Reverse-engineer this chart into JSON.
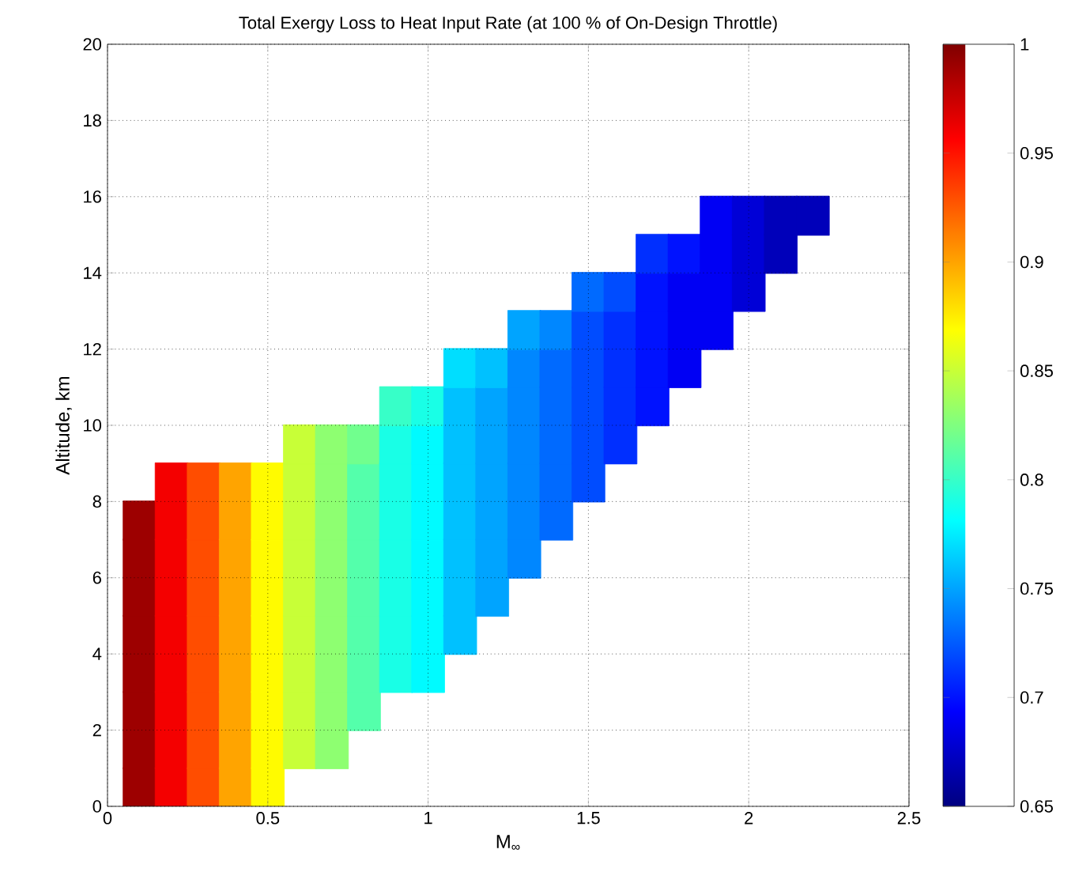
{
  "chart_data": {
    "type": "scatter",
    "title": "Total Exergy Loss to Heat Input Rate (at 100 % of On-Design Throttle)",
    "xlabel": "M$_{∞}$",
    "ylabel": "Altitude, km",
    "x": [
      0.1,
      0.1,
      0.1,
      0.1,
      0.1,
      0.1,
      0.1,
      0.1,
      0.2,
      0.2,
      0.2,
      0.2,
      0.2,
      0.2,
      0.2,
      0.2,
      0.2,
      0.3,
      0.3,
      0.3,
      0.3,
      0.3,
      0.3,
      0.3,
      0.3,
      0.3,
      0.4,
      0.4,
      0.4,
      0.4,
      0.4,
      0.4,
      0.4,
      0.4,
      0.4,
      0.5,
      0.5,
      0.5,
      0.5,
      0.5,
      0.5,
      0.5,
      0.5,
      0.5,
      0.6,
      0.6,
      0.6,
      0.6,
      0.6,
      0.6,
      0.6,
      0.6,
      0.6,
      0.7,
      0.7,
      0.7,
      0.7,
      0.7,
      0.7,
      0.7,
      0.7,
      0.7,
      0.8,
      0.8,
      0.8,
      0.8,
      0.8,
      0.8,
      0.8,
      0.8,
      0.9,
      0.9,
      0.9,
      0.9,
      0.9,
      0.9,
      0.9,
      0.9,
      1.0,
      1.0,
      1.0,
      1.0,
      1.0,
      1.0,
      1.0,
      1.0,
      1.1,
      1.1,
      1.1,
      1.1,
      1.1,
      1.1,
      1.1,
      1.1,
      1.2,
      1.2,
      1.2,
      1.2,
      1.2,
      1.2,
      1.2,
      1.3,
      1.3,
      1.3,
      1.3,
      1.3,
      1.3,
      1.3,
      1.4,
      1.4,
      1.4,
      1.4,
      1.4,
      1.4,
      1.5,
      1.5,
      1.5,
      1.5,
      1.5,
      1.5,
      1.6,
      1.6,
      1.6,
      1.6,
      1.6,
      1.7,
      1.7,
      1.7,
      1.7,
      1.7,
      1.8,
      1.8,
      1.8,
      1.8,
      1.9,
      1.9,
      1.9,
      1.9,
      2.0,
      2.0,
      2.0,
      2.1,
      2.1,
      2.2
    ],
    "values": [
      0.5,
      1.5,
      2.5,
      3.5,
      4.5,
      5.5,
      6.5,
      7.5,
      0.5,
      1.5,
      2.5,
      3.5,
      4.5,
      5.5,
      6.5,
      7.5,
      8.5,
      0.5,
      1.5,
      2.5,
      3.5,
      4.5,
      5.5,
      6.5,
      7.5,
      8.5,
      0.5,
      1.5,
      2.5,
      3.5,
      4.5,
      5.5,
      6.5,
      7.5,
      8.5,
      0.5,
      1.5,
      2.5,
      3.5,
      4.5,
      5.5,
      6.5,
      7.5,
      8.5,
      1.5,
      2.5,
      3.5,
      4.5,
      5.5,
      6.5,
      7.5,
      8.5,
      9.5,
      1.5,
      2.5,
      3.5,
      4.5,
      5.5,
      6.5,
      7.5,
      8.5,
      9.5,
      2.5,
      3.5,
      4.5,
      5.5,
      6.5,
      7.5,
      8.5,
      9.5,
      3.5,
      4.5,
      5.5,
      6.5,
      7.5,
      8.5,
      9.5,
      10.5,
      3.5,
      4.5,
      5.5,
      6.5,
      7.5,
      8.5,
      9.5,
      10.5,
      4.5,
      5.5,
      6.5,
      7.5,
      8.5,
      9.5,
      10.5,
      11.5,
      5.5,
      6.5,
      7.5,
      8.5,
      9.5,
      10.5,
      11.5,
      6.5,
      7.5,
      8.5,
      9.5,
      10.5,
      11.5,
      12.5,
      7.5,
      8.5,
      9.5,
      10.5,
      11.5,
      12.5,
      8.5,
      9.5,
      10.5,
      11.5,
      12.5,
      13.5,
      9.5,
      10.5,
      11.5,
      12.5,
      13.5,
      10.5,
      11.5,
      12.5,
      13.5,
      14.5,
      11.5,
      12.5,
      13.5,
      14.5,
      12.5,
      13.5,
      14.5,
      15.5,
      13.5,
      14.5,
      15.5,
      14.5,
      15.5,
      15.5
    ],
    "cvalues": [
      0.99,
      0.99,
      0.99,
      0.99,
      0.99,
      0.99,
      0.99,
      0.99,
      0.96,
      0.96,
      0.96,
      0.96,
      0.96,
      0.96,
      0.96,
      0.96,
      0.96,
      0.93,
      0.93,
      0.93,
      0.93,
      0.93,
      0.93,
      0.93,
      0.93,
      0.93,
      0.9,
      0.9,
      0.9,
      0.9,
      0.9,
      0.9,
      0.9,
      0.9,
      0.9,
      0.87,
      0.87,
      0.87,
      0.87,
      0.87,
      0.87,
      0.87,
      0.87,
      0.87,
      0.85,
      0.85,
      0.85,
      0.85,
      0.85,
      0.85,
      0.85,
      0.85,
      0.85,
      0.83,
      0.83,
      0.83,
      0.83,
      0.83,
      0.83,
      0.83,
      0.83,
      0.83,
      0.81,
      0.81,
      0.81,
      0.81,
      0.81,
      0.81,
      0.81,
      0.82,
      0.79,
      0.79,
      0.79,
      0.79,
      0.79,
      0.79,
      0.79,
      0.8,
      0.78,
      0.78,
      0.78,
      0.78,
      0.78,
      0.78,
      0.78,
      0.79,
      0.76,
      0.76,
      0.76,
      0.76,
      0.76,
      0.76,
      0.76,
      0.77,
      0.75,
      0.75,
      0.75,
      0.75,
      0.75,
      0.75,
      0.76,
      0.74,
      0.74,
      0.74,
      0.74,
      0.74,
      0.74,
      0.75,
      0.73,
      0.73,
      0.73,
      0.73,
      0.73,
      0.74,
      0.72,
      0.72,
      0.72,
      0.72,
      0.72,
      0.73,
      0.71,
      0.71,
      0.71,
      0.71,
      0.72,
      0.7,
      0.7,
      0.7,
      0.7,
      0.71,
      0.69,
      0.69,
      0.69,
      0.7,
      0.69,
      0.69,
      0.69,
      0.69,
      0.68,
      0.68,
      0.68,
      0.67,
      0.67,
      0.67
    ],
    "marker": "square",
    "grid": true,
    "xlim": [
      0,
      2.5
    ],
    "ylim": [
      0,
      20
    ],
    "xticks": [
      0,
      0.5,
      1,
      1.5,
      2,
      2.5
    ],
    "yticks": [
      0,
      2,
      4,
      6,
      8,
      10,
      12,
      14,
      16,
      18,
      20
    ],
    "clim": [
      0.65,
      1
    ],
    "cticks": [
      0.65,
      0.7,
      0.75,
      0.8,
      0.85,
      0.9,
      0.95,
      1
    ]
  }
}
